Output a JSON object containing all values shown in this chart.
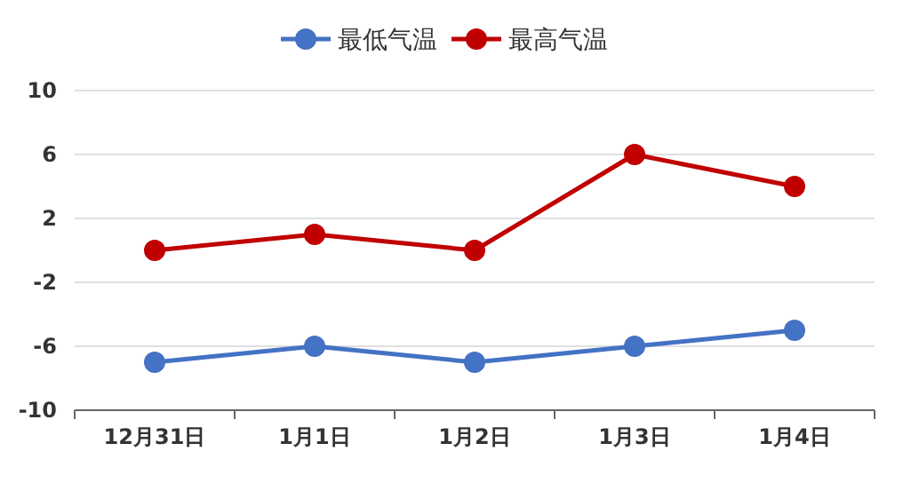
{
  "chart_data": {
    "type": "line",
    "categories": [
      "12月31日",
      "1月1日",
      "1月2日",
      "1月3日",
      "1月4日"
    ],
    "series": [
      {
        "name": "最低气温",
        "color": "#4472c4",
        "values": [
          -7,
          -6,
          -7,
          -6,
          -5
        ]
      },
      {
        "name": "最高气温",
        "color": "#c00000",
        "values": [
          0,
          1,
          0,
          6,
          4
        ]
      }
    ],
    "ylim": [
      -10,
      10
    ],
    "yticks": [
      -10,
      -6,
      -2,
      2,
      6,
      10
    ],
    "grid": "y",
    "legend": "top",
    "marker": "circle",
    "line_style": "solid"
  }
}
